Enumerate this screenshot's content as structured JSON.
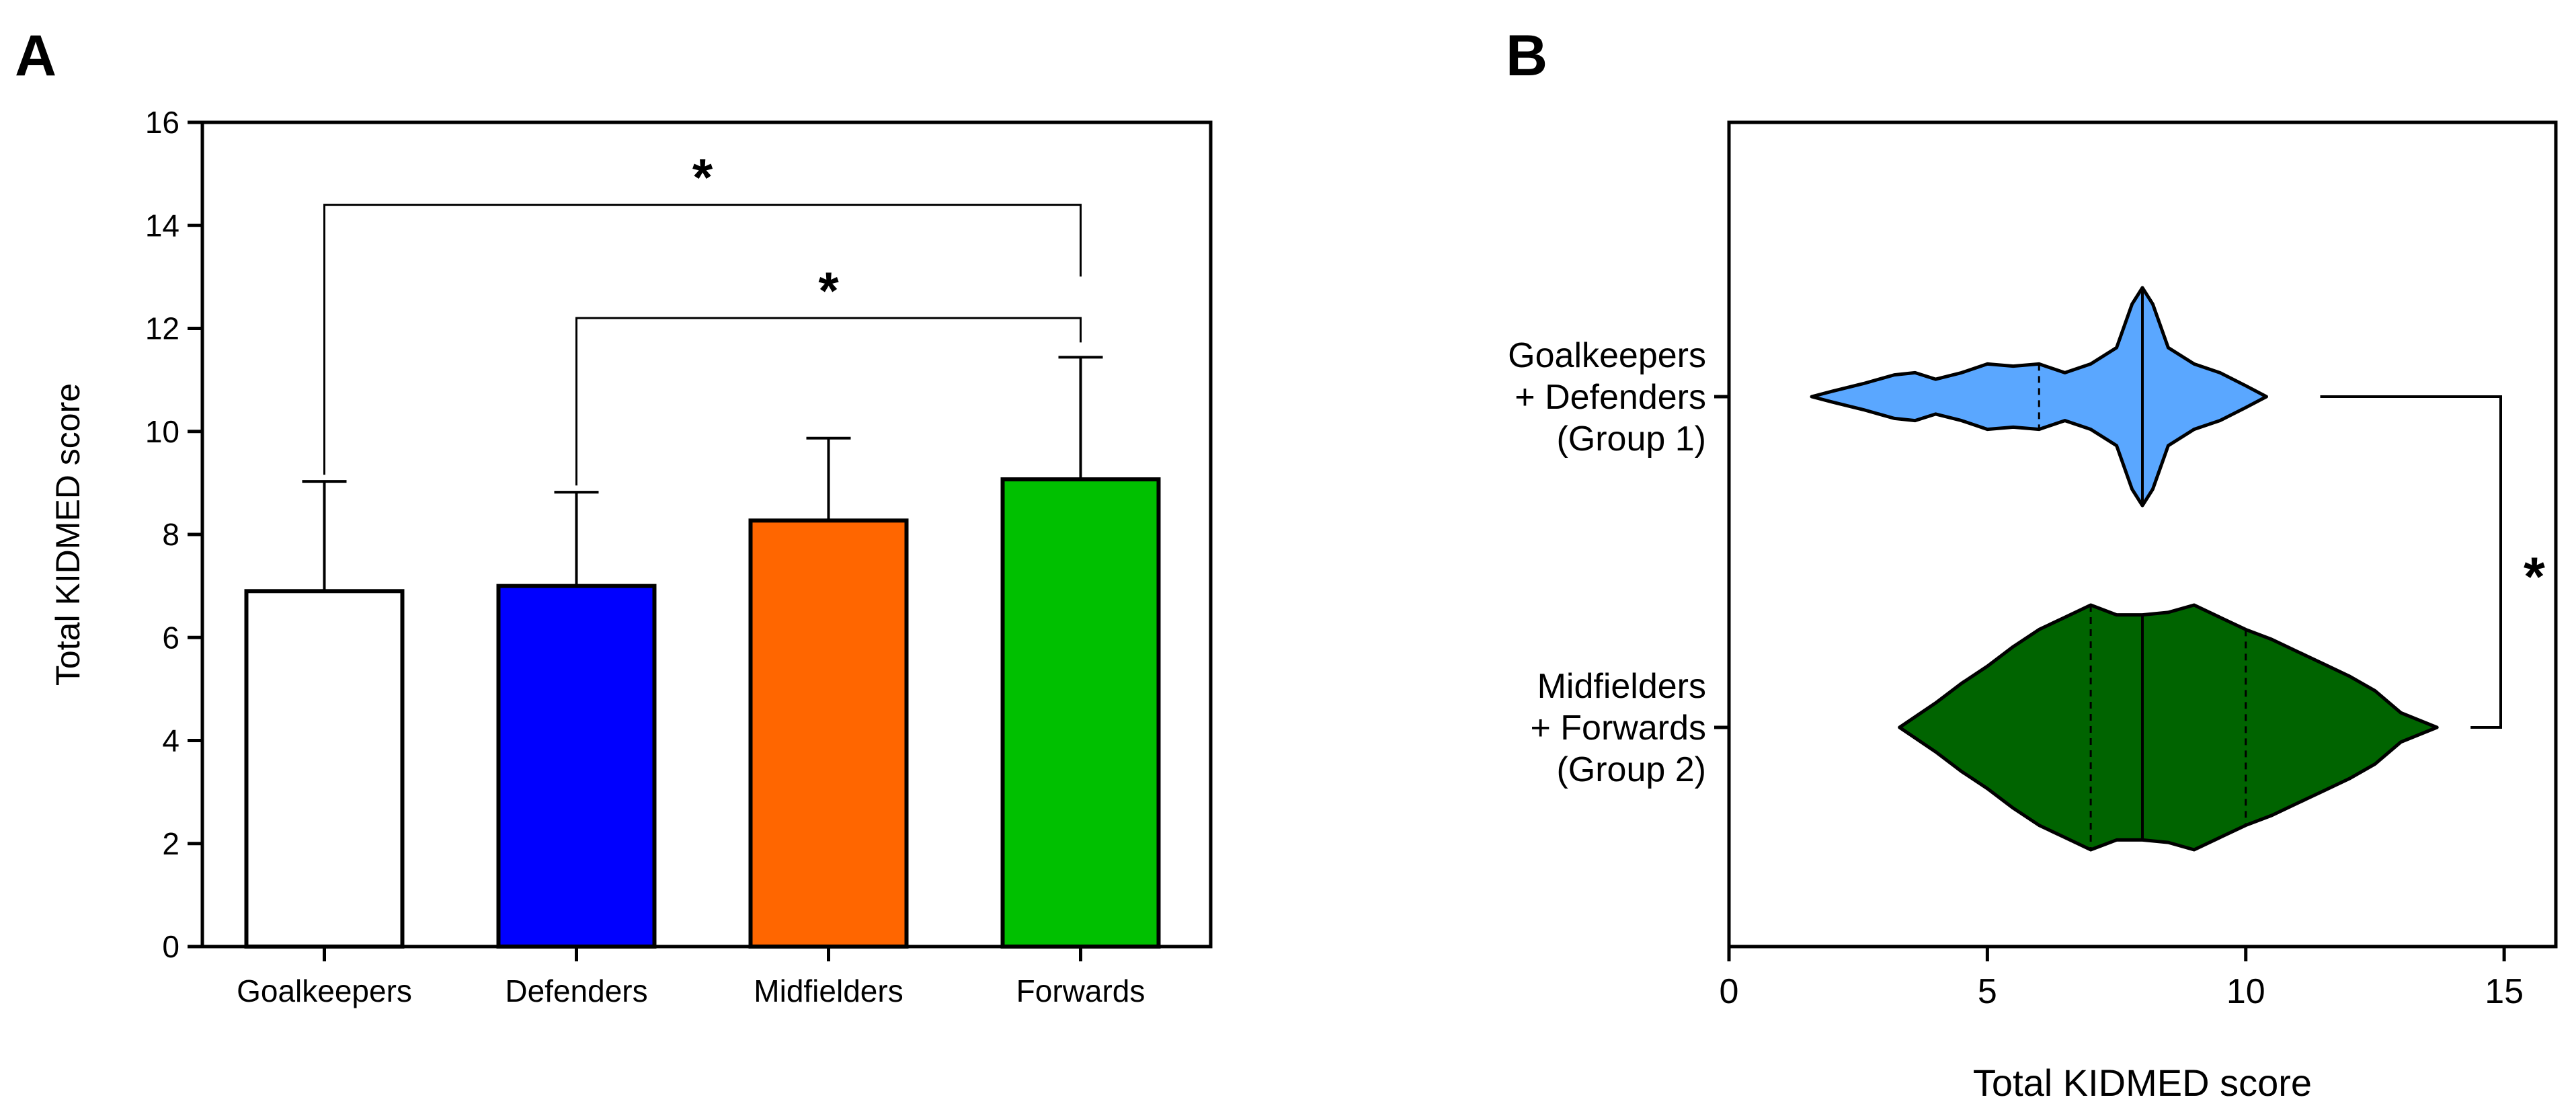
{
  "panels": {
    "a": {
      "letter": "A"
    },
    "b": {
      "letter": "B"
    }
  },
  "chart_data": [
    {
      "type": "bar",
      "panel": "A",
      "title": "",
      "xlabel": "",
      "ylabel": "Total KIDMED score",
      "ylim": [
        0,
        16
      ],
      "yticks": [
        0,
        2,
        4,
        6,
        8,
        10,
        12,
        14,
        16
      ],
      "categories": [
        "Goalkeepers",
        "Defenders",
        "Midfielders",
        "Forwards"
      ],
      "values": [
        6.9,
        7.0,
        8.27,
        9.07
      ],
      "error_upper": [
        2.13,
        1.82,
        1.6,
        2.37
      ],
      "colors": [
        "#ffffff",
        "#0000ff",
        "#ff6600",
        "#00c000"
      ],
      "significance": [
        {
          "from": "Goalkeepers",
          "to": "Forwards",
          "label": "*",
          "y": 14.4
        },
        {
          "from": "Defenders",
          "to": "Forwards",
          "label": "*",
          "y": 12.2
        }
      ]
    },
    {
      "type": "violin",
      "panel": "B",
      "title": "",
      "xlabel": "Total KIDMED score",
      "ylabel": "",
      "xlim": [
        0,
        16
      ],
      "xticks": [
        0,
        5,
        10,
        15
      ],
      "groups": [
        {
          "label_lines": [
            "Goalkeepers",
            "+ Defenders",
            "(Group 1)"
          ],
          "color": "#5aa7ff",
          "median": 8,
          "quartiles": [
            6,
            8
          ],
          "profile": [
            [
              1.6,
              0
            ],
            [
              2,
              0.05
            ],
            [
              2.6,
              0.12
            ],
            [
              3.2,
              0.2
            ],
            [
              3.6,
              0.22
            ],
            [
              4,
              0.16
            ],
            [
              4.5,
              0.22
            ],
            [
              5,
              0.3
            ],
            [
              5.5,
              0.28
            ],
            [
              6,
              0.3
            ],
            [
              6.5,
              0.22
            ],
            [
              7,
              0.3
            ],
            [
              7.5,
              0.45
            ],
            [
              7.8,
              0.85
            ],
            [
              8,
              1.0
            ],
            [
              8.2,
              0.85
            ],
            [
              8.5,
              0.45
            ],
            [
              9,
              0.3
            ],
            [
              9.5,
              0.22
            ],
            [
              10,
              0.1
            ],
            [
              10.4,
              0
            ]
          ]
        },
        {
          "label_lines": [
            "Midfielders",
            "+ Forwards",
            "(Group 2)"
          ],
          "color": "#006400",
          "median": 8,
          "quartiles": [
            7,
            10
          ],
          "profile": [
            [
              3.3,
              0
            ],
            [
              4,
              0.2
            ],
            [
              4.5,
              0.36
            ],
            [
              5,
              0.5
            ],
            [
              5.5,
              0.66
            ],
            [
              6,
              0.8
            ],
            [
              6.5,
              0.9
            ],
            [
              7,
              1.0
            ],
            [
              7.5,
              0.92
            ],
            [
              8,
              0.92
            ],
            [
              8.5,
              0.94
            ],
            [
              9,
              1.0
            ],
            [
              9.5,
              0.9
            ],
            [
              10,
              0.8
            ],
            [
              10.5,
              0.72
            ],
            [
              11,
              0.62
            ],
            [
              11.5,
              0.52
            ],
            [
              12,
              0.42
            ],
            [
              12.5,
              0.3
            ],
            [
              13,
              0.12
            ],
            [
              13.7,
              0
            ]
          ]
        }
      ],
      "significance": [
        {
          "between": [
            "Group 1",
            "Group 2"
          ],
          "label": "*"
        }
      ]
    }
  ]
}
